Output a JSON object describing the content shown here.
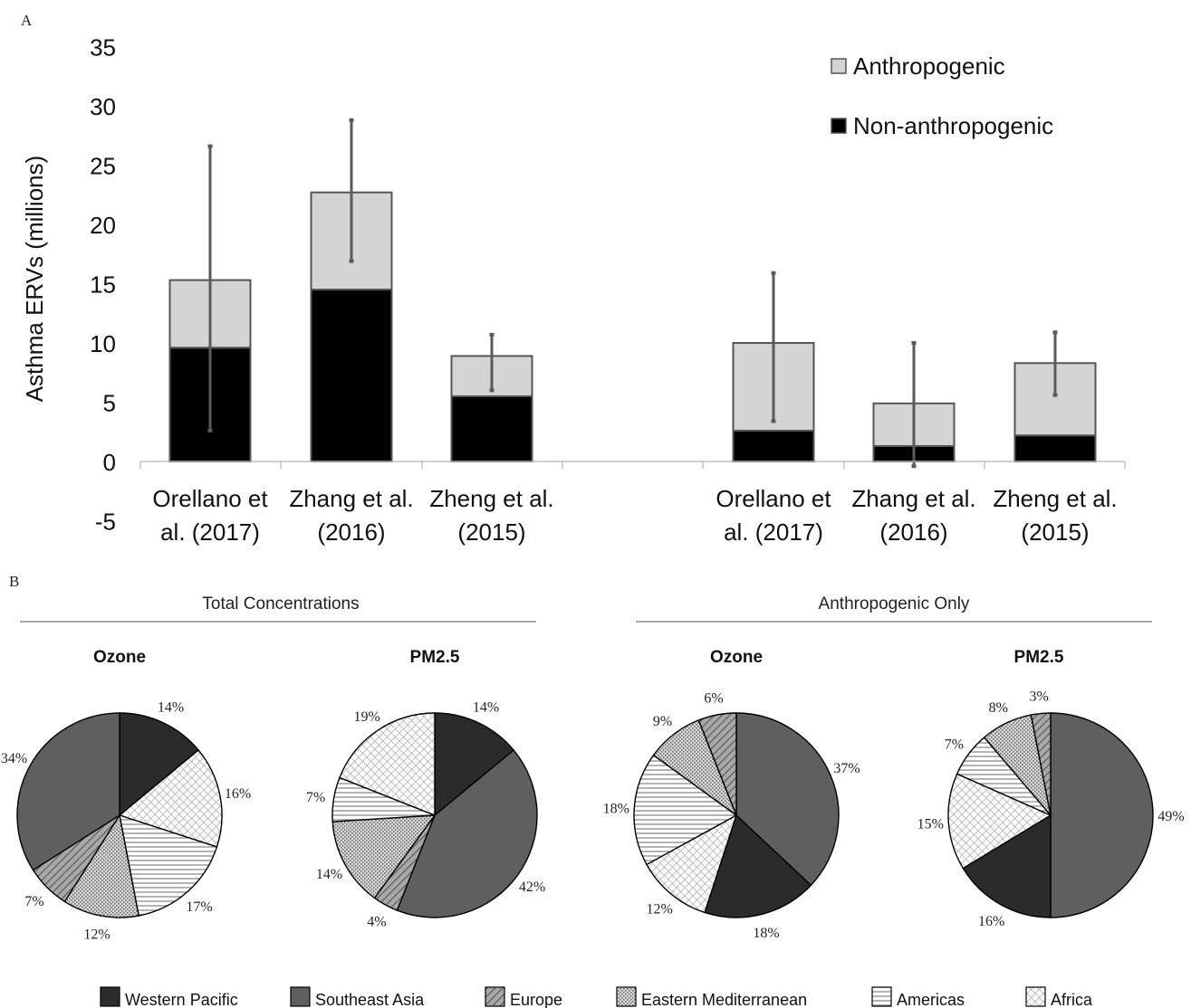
{
  "panel_a_label": "A",
  "panel_b_label": "B",
  "chart_data": [
    {
      "type": "bar",
      "subtype": "stacked",
      "panel": "A",
      "ylabel": "Asthma ERVs (millions)",
      "ylim": [
        -5,
        35
      ],
      "yticks": [
        -5,
        0,
        5,
        10,
        15,
        20,
        25,
        30,
        35
      ],
      "grid": false,
      "legend_position": "top-right",
      "groups": [
        {
          "categories": [
            "Orellano et al. (2017)",
            "Zhang et al. (2016)",
            "Zheng et al. (2015)"
          ]
        },
        {
          "categories": [
            "Orellano et al. (2017)",
            "Zhang et al. (2016)",
            "Zheng et al. (2015)"
          ]
        }
      ],
      "category_lines": [
        [
          "Orellano et",
          "al. (2017)"
        ],
        [
          "Zhang et al.",
          "(2016)"
        ],
        [
          "Zheng et al.",
          "(2015)"
        ],
        [
          "Orellano et",
          "al. (2017)"
        ],
        [
          "Zhang et al.",
          "(2016)"
        ],
        [
          "Zheng et al.",
          "(2015)"
        ]
      ],
      "series": [
        {
          "name": "Non-anthropogenic",
          "color": "#000000",
          "values": [
            9.6,
            14.5,
            5.5,
            2.6,
            1.3,
            2.2
          ]
        },
        {
          "name": "Anthropogenic",
          "color": "#d4d4d4",
          "values": [
            5.7,
            8.2,
            3.4,
            7.4,
            3.6,
            6.1
          ]
        }
      ],
      "totals": [
        15.3,
        22.7,
        8.9,
        10.0,
        4.9,
        8.3
      ],
      "error_bars": [
        [
          2.6,
          26.6
        ],
        [
          16.9,
          28.8
        ],
        [
          6.0,
          10.7
        ],
        [
          3.4,
          15.9
        ],
        [
          -0.4,
          10.0
        ],
        [
          5.6,
          10.9
        ]
      ]
    },
    {
      "type": "pie",
      "panel": "B",
      "section": "Total Concentrations",
      "title": "Ozone",
      "slices": [
        {
          "name": "Western Pacific",
          "value": 14,
          "label": "14%"
        },
        {
          "name": "Africa",
          "value": 16,
          "label": "16%"
        },
        {
          "name": "Americas",
          "value": 17,
          "label": "17%"
        },
        {
          "name": "Eastern Mediterranean",
          "value": 12,
          "label": "12%"
        },
        {
          "name": "Europe",
          "value": 7,
          "label": "7%"
        },
        {
          "name": "Southeast Asia",
          "value": 34,
          "label": "34%"
        }
      ]
    },
    {
      "type": "pie",
      "panel": "B",
      "section": "Total Concentrations",
      "title": "PM2.5",
      "slices": [
        {
          "name": "Western Pacific",
          "value": 14,
          "label": "14%"
        },
        {
          "name": "Southeast Asia",
          "value": 42,
          "label": "42%"
        },
        {
          "name": "Europe",
          "value": 4,
          "label": "4%"
        },
        {
          "name": "Eastern Mediterranean",
          "value": 14,
          "label": "14%"
        },
        {
          "name": "Americas",
          "value": 7,
          "label": "7%"
        },
        {
          "name": "Africa",
          "value": 19,
          "label": "19%"
        }
      ]
    },
    {
      "type": "pie",
      "panel": "B",
      "section": "Anthropogenic Only",
      "title": "Ozone",
      "slices": [
        {
          "name": "Southeast Asia",
          "value": 37,
          "label": "37%"
        },
        {
          "name": "Western Pacific",
          "value": 18,
          "label": "18%"
        },
        {
          "name": "Africa",
          "value": 12,
          "label": "12%"
        },
        {
          "name": "Americas",
          "value": 18,
          "label": "18%"
        },
        {
          "name": "Eastern Mediterranean",
          "value": 9,
          "label": "9%"
        },
        {
          "name": "Europe",
          "value": 6,
          "label": "6%"
        }
      ]
    },
    {
      "type": "pie",
      "panel": "B",
      "section": "Anthropogenic Only",
      "title": "PM2.5",
      "slices": [
        {
          "name": "Southeast Asia",
          "value": 49,
          "label": "49%"
        },
        {
          "name": "Western Pacific",
          "value": 16,
          "label": "16%"
        },
        {
          "name": "Africa",
          "value": 15,
          "label": "15%"
        },
        {
          "name": "Americas",
          "value": 7,
          "label": "7%"
        },
        {
          "name": "Eastern Mediterranean",
          "value": 8,
          "label": "8%"
        },
        {
          "name": "Europe",
          "value": 3,
          "label": "3%"
        }
      ]
    }
  ],
  "pie_legend": [
    {
      "name": "Western Pacific",
      "fill": "solid-dark",
      "color": "#2b2b2b"
    },
    {
      "name": "Southeast Asia",
      "fill": "solid-gray",
      "color": "#5f5f5f"
    },
    {
      "name": "Europe",
      "fill": "diagonal-hatch",
      "color": "#8a8a8a"
    },
    {
      "name": "Eastern Mediterranean",
      "fill": "dots",
      "color": "#bdbdbd"
    },
    {
      "name": "Americas",
      "fill": "horizontal-lines",
      "color": "#ffffff"
    },
    {
      "name": "Africa",
      "fill": "crosshatch",
      "color": "#ffffff"
    }
  ]
}
